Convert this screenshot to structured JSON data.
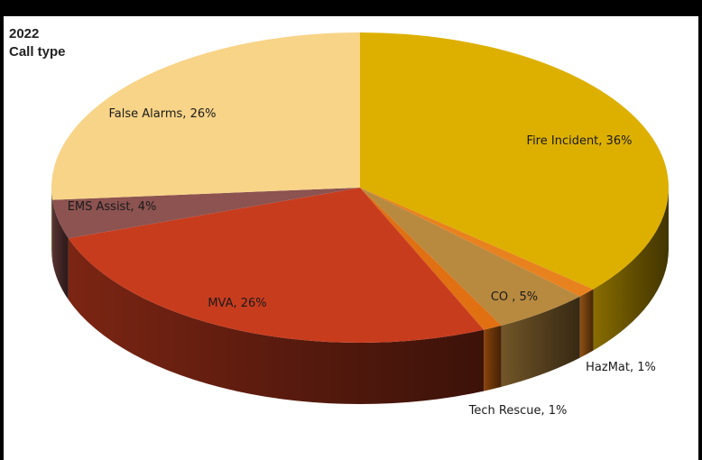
{
  "chart_data": {
    "type": "pie",
    "title": "2022",
    "subtitle": "Call type",
    "slices": [
      {
        "label": "Fire Incident",
        "value": 36,
        "display": "Fire Incident, 36%",
        "color": "#DDB000"
      },
      {
        "label": "HazMat",
        "value": 1,
        "display": "HazMat, 1%",
        "color": "#E8821E"
      },
      {
        "label": "CO",
        "value": 5,
        "display": "CO , 5%",
        "color": "#B88A40"
      },
      {
        "label": "Tech Rescue",
        "value": 1,
        "display": "Tech Rescue, 1%",
        "color": "#E07012"
      },
      {
        "label": "MVA",
        "value": 26,
        "display": "MVA, 26%",
        "color": "#C83C1E"
      },
      {
        "label": "EMS Assist",
        "value": 4,
        "display": "EMS Assist, 4%",
        "color": "#8C5350"
      },
      {
        "label": "False Alarms",
        "value": 26,
        "display": "False Alarms, 26%",
        "color": "#F8D488"
      }
    ],
    "style": "3d"
  }
}
